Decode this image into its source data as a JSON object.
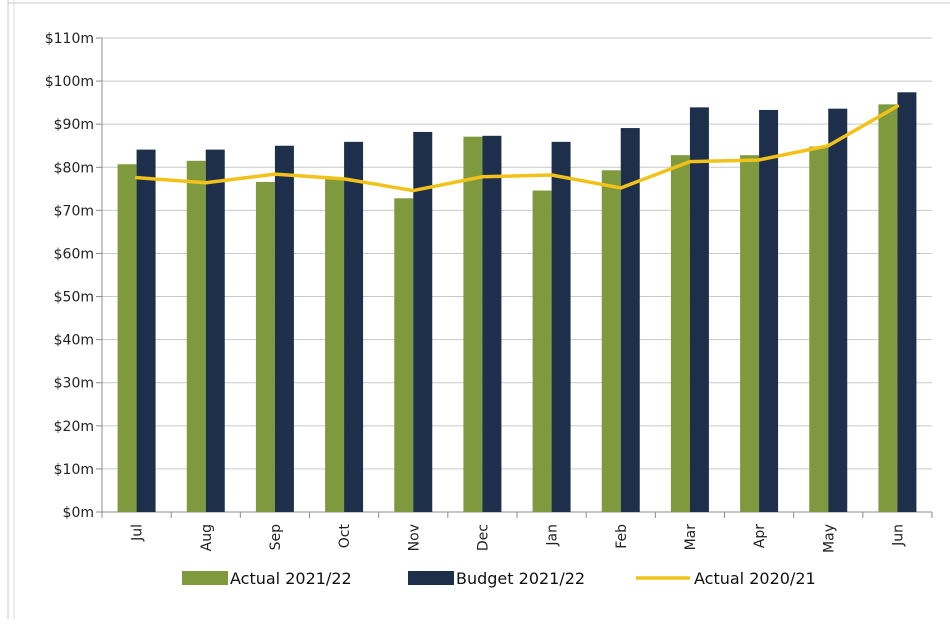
{
  "chart_data": {
    "type": "bar",
    "title": "",
    "xlabel": "",
    "ylabel": "",
    "categories": [
      "Jul",
      "Aug",
      "Sep",
      "Oct",
      "Nov",
      "Dec",
      "Jan",
      "Feb",
      "Mar",
      "Apr",
      "May",
      "Jun"
    ],
    "yticks": [
      "$0m",
      "$10m",
      "$20m",
      "$30m",
      "$40m",
      "$50m",
      "$60m",
      "$70m",
      "$80m",
      "$90m",
      "$100m",
      "$110m"
    ],
    "ylim": [
      0,
      110
    ],
    "grid": true,
    "legend": "bottom",
    "series": [
      {
        "name": "Actual 2021/22",
        "kind": "bar",
        "color": "#7f9a3e",
        "values": [
          80.7,
          81.5,
          76.6,
          77.4,
          72.8,
          87.1,
          74.6,
          79.3,
          82.8,
          82.8,
          84.8,
          94.6
        ]
      },
      {
        "name": "Budget 2021/22",
        "kind": "bar",
        "color": "#1e2f4b",
        "values": [
          84.1,
          84.1,
          85.0,
          85.9,
          88.2,
          87.3,
          85.9,
          89.1,
          93.9,
          93.3,
          93.6,
          97.4
        ]
      },
      {
        "name": "Actual 2020/21",
        "kind": "line",
        "color": "#f2c21b",
        "values": [
          77.6,
          76.4,
          78.4,
          77.3,
          74.6,
          77.8,
          78.2,
          75.2,
          81.3,
          81.7,
          85.0,
          94.2
        ]
      }
    ]
  }
}
